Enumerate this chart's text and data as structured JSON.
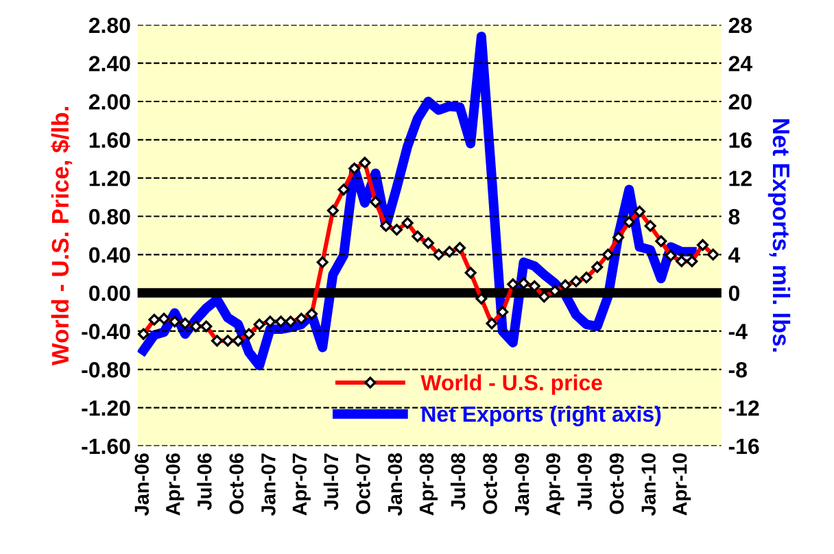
{
  "chart_data": {
    "type": "line",
    "xlabel": null,
    "ylabel": "World - U.S. Price, $/lb.",
    "y2label": "Net Exports, mil. lbs.",
    "x": [
      "2006-01",
      "2006-02",
      "2006-03",
      "2006-04",
      "2006-05",
      "2006-06",
      "2006-07",
      "2006-08",
      "2006-09",
      "2006-10",
      "2006-11",
      "2006-12",
      "2007-01",
      "2007-02",
      "2007-03",
      "2007-04",
      "2007-05",
      "2007-06",
      "2007-07",
      "2007-08",
      "2007-09",
      "2007-10",
      "2007-11",
      "2007-12",
      "2008-01",
      "2008-02",
      "2008-03",
      "2008-04",
      "2008-05",
      "2008-06",
      "2008-07",
      "2008-08",
      "2008-09",
      "2008-10",
      "2008-11",
      "2008-12",
      "2009-01",
      "2009-02",
      "2009-03",
      "2009-04",
      "2009-05",
      "2009-06",
      "2009-07",
      "2009-08",
      "2009-09",
      "2009-10",
      "2009-11",
      "2009-12",
      "2010-01",
      "2010-02",
      "2010-03",
      "2010-04",
      "2010-05",
      "2010-06",
      "2010-07"
    ],
    "series": [
      {
        "name": "World - U.S. price",
        "color": "#ff0000",
        "marker": "diamond",
        "values": [
          -0.43,
          -0.28,
          -0.27,
          -0.3,
          -0.32,
          -0.35,
          -0.35,
          -0.5,
          -0.5,
          -0.5,
          -0.43,
          -0.33,
          -0.3,
          -0.3,
          -0.3,
          -0.27,
          -0.22,
          0.32,
          0.86,
          1.08,
          1.3,
          1.36,
          0.95,
          0.7,
          0.66,
          0.73,
          0.59,
          0.52,
          0.4,
          0.43,
          0.47,
          0.21,
          -0.06,
          -0.32,
          -0.2,
          0.09,
          0.1,
          0.07,
          -0.04,
          0.02,
          0.08,
          0.12,
          0.16,
          0.27,
          0.4,
          0.58,
          0.74,
          0.85,
          0.7,
          0.54,
          0.39,
          0.33,
          0.33,
          0.5,
          0.4
        ]
      },
      {
        "name": "Net Exports (right axis)",
        "color": "#0000ff",
        "axis": "y2",
        "marker": "none",
        "values": [
          -6.0,
          -4.4,
          -4.1,
          -2.1,
          -4.3,
          -2.8,
          -1.6,
          -0.7,
          -2.6,
          -3.3,
          -6.2,
          -7.6,
          -3.8,
          -3.8,
          -3.6,
          -3.3,
          -2.3,
          -5.7,
          1.9,
          3.9,
          13.0,
          9.4,
          12.5,
          7.0,
          11.0,
          15.3,
          18.2,
          20.0,
          19.1,
          19.5,
          19.4,
          15.6,
          26.8,
          12.0,
          -4.0,
          -5.2,
          3.2,
          2.8,
          1.9,
          1.0,
          -0.2,
          -2.3,
          -3.3,
          -3.5,
          -0.4,
          6.0,
          10.8,
          4.8,
          4.5,
          1.5,
          4.8,
          4.3,
          4.3,
          null,
          null
        ]
      }
    ],
    "xlim": [
      "2005-12-15",
      "2010-07-25"
    ],
    "xticks": [
      {
        "value": "2006-01",
        "label": "Jan-06"
      },
      {
        "value": "2006-04",
        "label": "Apr-06"
      },
      {
        "value": "2006-07",
        "label": "Jul-06"
      },
      {
        "value": "2006-10",
        "label": "Oct-06"
      },
      {
        "value": "2007-01",
        "label": "Jan-07"
      },
      {
        "value": "2007-04",
        "label": "Apr-07"
      },
      {
        "value": "2007-07",
        "label": "Jul-07"
      },
      {
        "value": "2007-10",
        "label": "Oct-07"
      },
      {
        "value": "2008-01",
        "label": "Jan-08"
      },
      {
        "value": "2008-04",
        "label": "Apr-08"
      },
      {
        "value": "2008-07",
        "label": "Jul-08"
      },
      {
        "value": "2008-10",
        "label": "Oct-08"
      },
      {
        "value": "2009-01",
        "label": "Jan-09"
      },
      {
        "value": "2009-04",
        "label": "Apr-09"
      },
      {
        "value": "2009-07",
        "label": "Jul-09"
      },
      {
        "value": "2009-10",
        "label": "Oct-09"
      },
      {
        "value": "2010-01",
        "label": "Jan-10"
      },
      {
        "value": "2010-04",
        "label": "Apr-10"
      }
    ],
    "ylim": [
      -1.6,
      2.8
    ],
    "yticks": [
      {
        "value": -1.6,
        "label": "-1.60"
      },
      {
        "value": -1.2,
        "label": "-1.20"
      },
      {
        "value": -0.8,
        "label": "-0.80"
      },
      {
        "value": -0.4,
        "label": "-0.40"
      },
      {
        "value": 0,
        "label": "0.00"
      },
      {
        "value": 0.4,
        "label": "0.40"
      },
      {
        "value": 0.8,
        "label": "0.80"
      },
      {
        "value": 1.2,
        "label": "1.20"
      },
      {
        "value": 1.6,
        "label": "1.60"
      },
      {
        "value": 2.0,
        "label": "2.00"
      },
      {
        "value": 2.4,
        "label": "2.40"
      },
      {
        "value": 2.8,
        "label": "2.80"
      }
    ],
    "y2lim": [
      -16,
      28
    ],
    "y2ticks": [
      -16,
      -12,
      -8,
      -4,
      0,
      4,
      8,
      12,
      16,
      20,
      24,
      28
    ],
    "ref_lines": [
      {
        "axis": "y",
        "value": 0,
        "color": "#000000"
      }
    ],
    "grid": "y",
    "line_style": "solid",
    "legend": "bottom"
  }
}
